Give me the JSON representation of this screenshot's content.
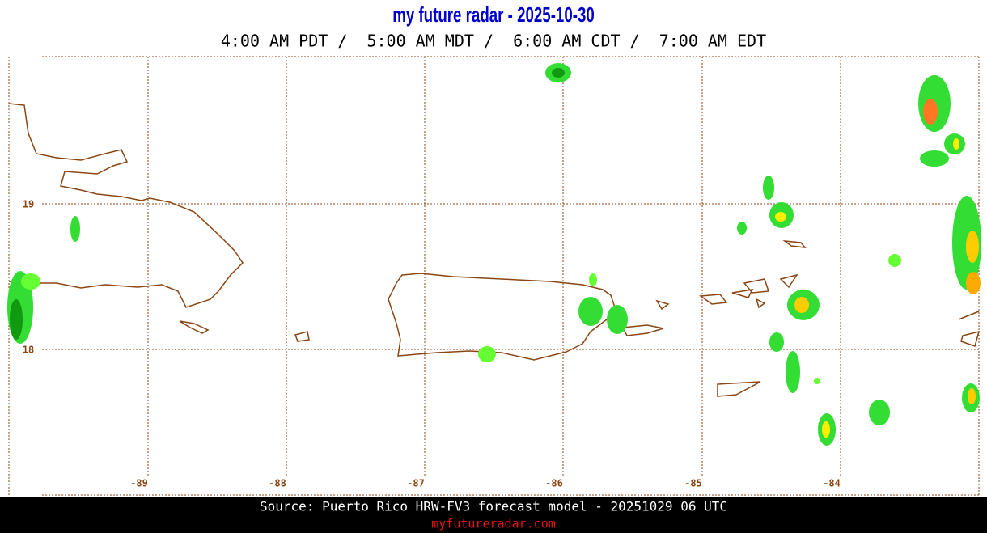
{
  "header": {
    "title": "my future radar - 2025-10-30",
    "times": "4:00 AM PDT /  5:00 AM MDT /  6:00 AM CDT /  7:00 AM EDT"
  },
  "map": {
    "latitude_labels": [
      "19",
      "18"
    ],
    "longitude_labels": [
      "-89",
      "-88",
      "-87",
      "-86",
      "-85",
      "-84"
    ]
  },
  "footer": {
    "source": "Source: Puerto Rico HRW-FV3 forecast model - 20251029 06 UTC",
    "site": "myfutureradar.com"
  }
}
